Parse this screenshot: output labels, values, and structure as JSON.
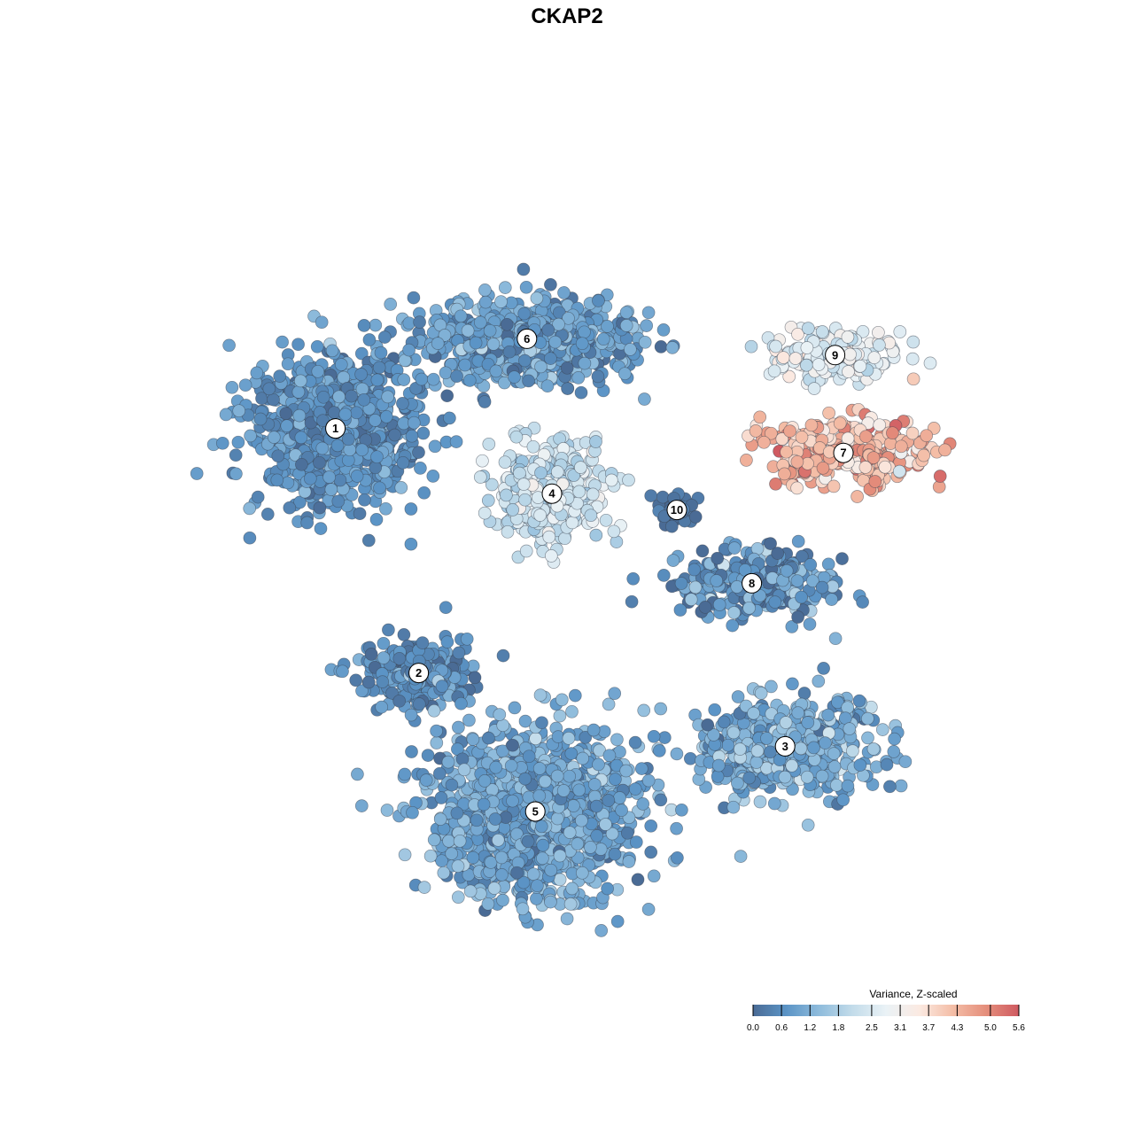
{
  "chart_data": {
    "type": "scatter",
    "title": "CKAP2",
    "xlabel": "",
    "ylabel": "",
    "grid": false,
    "color_scale": {
      "name": "Variance, Z-scaled",
      "min": 0.0,
      "max": 5.6,
      "ticks": [
        0.0,
        0.6,
        1.2,
        1.8,
        2.5,
        3.1,
        3.7,
        4.3,
        5.0,
        5.6
      ],
      "tick_labels": [
        "0.0",
        "0.6",
        "1.2",
        "1.8",
        "2.5",
        "3.1",
        "3.7",
        "4.3",
        "5.0",
        "5.6"
      ],
      "colors": [
        "#4a6b95",
        "#5b94c6",
        "#8fbcdc",
        "#c3dcea",
        "#eaf2f6",
        "#fbeae2",
        "#f4bea7",
        "#e58f7c",
        "#cf5a61"
      ],
      "legend_position": "bottom-right"
    },
    "clusters": [
      {
        "label": "1",
        "x": 0.19,
        "y": 0.67,
        "spread_x": 0.09,
        "spread_y": 0.08,
        "n": 900,
        "value_mean": 0.7,
        "value_sd": 0.35
      },
      {
        "label": "6",
        "x": 0.42,
        "y": 0.78,
        "spread_x": 0.11,
        "spread_y": 0.045,
        "n": 750,
        "value_mean": 0.9,
        "value_sd": 0.4
      },
      {
        "label": "4",
        "x": 0.45,
        "y": 0.59,
        "spread_x": 0.055,
        "spread_y": 0.05,
        "n": 450,
        "value_mean": 2.3,
        "value_sd": 0.4
      },
      {
        "label": "10",
        "x": 0.6,
        "y": 0.57,
        "spread_x": 0.018,
        "spread_y": 0.02,
        "n": 60,
        "value_mean": 0.2,
        "value_sd": 0.2
      },
      {
        "label": "9",
        "x": 0.79,
        "y": 0.76,
        "spread_x": 0.07,
        "spread_y": 0.03,
        "n": 180,
        "value_mean": 2.8,
        "value_sd": 0.45
      },
      {
        "label": "7",
        "x": 0.8,
        "y": 0.64,
        "spread_x": 0.1,
        "spread_y": 0.035,
        "n": 320,
        "value_mean": 4.3,
        "value_sd": 0.55
      },
      {
        "label": "8",
        "x": 0.69,
        "y": 0.48,
        "spread_x": 0.09,
        "spread_y": 0.035,
        "n": 280,
        "value_mean": 0.7,
        "value_sd": 0.6
      },
      {
        "label": "2",
        "x": 0.29,
        "y": 0.37,
        "spread_x": 0.06,
        "spread_y": 0.04,
        "n": 280,
        "value_mean": 0.6,
        "value_sd": 0.4
      },
      {
        "label": "3",
        "x": 0.73,
        "y": 0.28,
        "spread_x": 0.09,
        "spread_y": 0.05,
        "n": 650,
        "value_mean": 1.1,
        "value_sd": 0.45
      },
      {
        "label": "5",
        "x": 0.43,
        "y": 0.2,
        "spread_x": 0.11,
        "spread_y": 0.09,
        "n": 1300,
        "value_mean": 1.0,
        "value_sd": 0.4
      }
    ],
    "xlim": [
      0,
      1
    ],
    "ylim": [
      0,
      1
    ]
  }
}
